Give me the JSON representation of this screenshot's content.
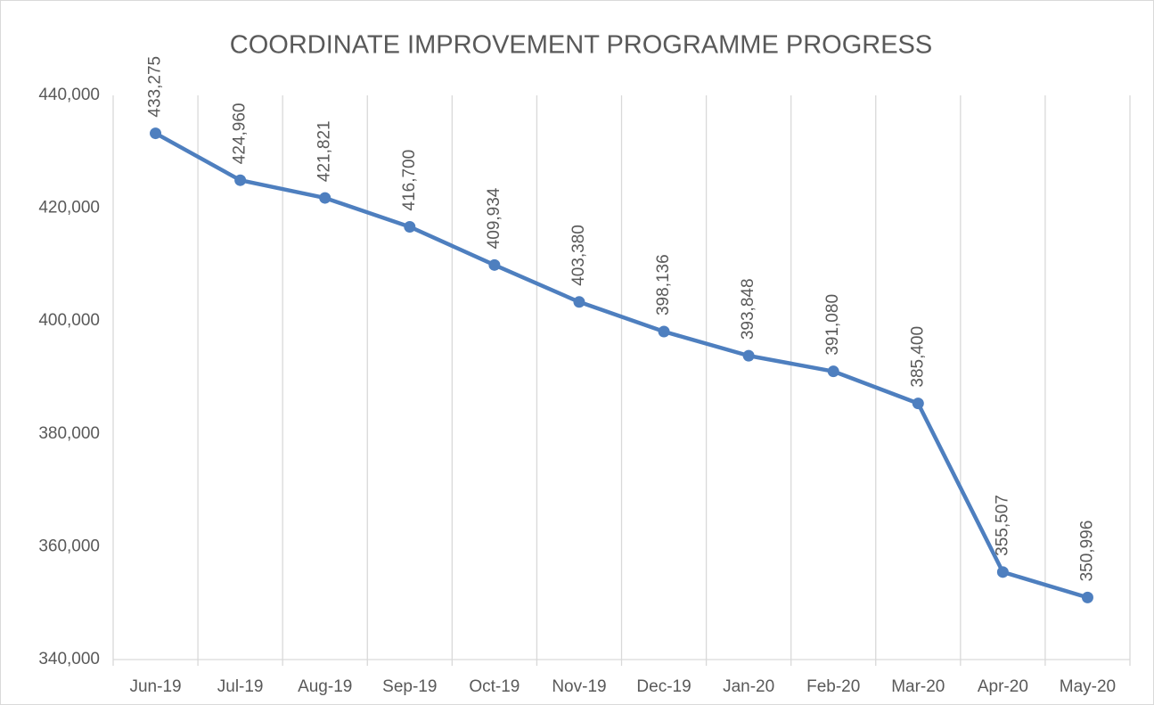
{
  "chart_data": {
    "type": "line",
    "title": "COORDINATE IMPROVEMENT PROGRAMME PROGRESS",
    "categories": [
      "Jun-19",
      "Jul-19",
      "Aug-19",
      "Sep-19",
      "Oct-19",
      "Nov-19",
      "Dec-19",
      "Jan-20",
      "Feb-20",
      "Mar-20",
      "Apr-20",
      "May-20"
    ],
    "values": [
      433275,
      424960,
      421821,
      416700,
      409934,
      403380,
      398136,
      393848,
      391080,
      385400,
      355507,
      350996
    ],
    "value_labels": [
      "433,275",
      "424,960",
      "421,821",
      "416,700",
      "409,934",
      "403,380",
      "398,136",
      "393,848",
      "391,080",
      "385,400",
      "355,507",
      "350,996"
    ],
    "color": "#4e7fbf",
    "ylim": [
      340000,
      440000
    ],
    "yticks": [
      {
        "value": 340000,
        "label": "340,000"
      },
      {
        "value": 360000,
        "label": "360,000"
      },
      {
        "value": 380000,
        "label": "380,000"
      },
      {
        "value": 400000,
        "label": "400,000"
      },
      {
        "value": 420000,
        "label": "420,000"
      },
      {
        "value": 440000,
        "label": "440,000"
      }
    ],
    "grid": true
  }
}
